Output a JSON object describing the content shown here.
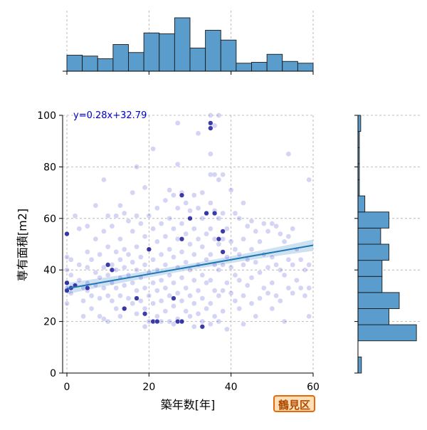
{
  "chart_data": [
    {
      "type": "scatter",
      "title": "",
      "xlabel": "築年数[年]",
      "ylabel": "専有面積[m2]",
      "xlim": [
        -1,
        60
      ],
      "ylim": [
        0,
        100
      ],
      "xticks": [
        "0",
        "20",
        "40",
        "60"
      ],
      "yticks": [
        "0",
        "20",
        "40",
        "60",
        "80",
        "100"
      ],
      "grid": true,
      "point_color": "#3a3ad0",
      "regression": {
        "label": "y=0.28x+32.79",
        "slope": 0.28,
        "intercept": 32.79,
        "color": "#1f77b4",
        "label_color": "#0000cc",
        "ci_halfwidth_ends": 2.2,
        "ci_halfwidth_mid": 1.2
      },
      "points": [
        [
          0,
          54
        ],
        [
          0,
          45
        ],
        [
          0,
          40
        ],
        [
          0,
          35
        ],
        [
          0,
          33
        ],
        [
          0,
          27
        ],
        [
          1,
          44
        ],
        [
          1,
          38
        ],
        [
          1,
          31
        ],
        [
          2,
          61
        ],
        [
          3,
          56
        ],
        [
          3,
          42
        ],
        [
          3,
          36
        ],
        [
          4,
          33
        ],
        [
          4,
          28
        ],
        [
          4,
          22
        ],
        [
          5,
          57
        ],
        [
          5,
          47
        ],
        [
          5,
          41
        ],
        [
          5,
          35
        ],
        [
          5,
          32
        ],
        [
          6,
          44
        ],
        [
          6,
          30
        ],
        [
          6,
          25
        ],
        [
          7,
          65
        ],
        [
          7,
          52
        ],
        [
          7,
          39
        ],
        [
          7,
          34
        ],
        [
          8,
          46
        ],
        [
          8,
          37
        ],
        [
          8,
          29
        ],
        [
          8,
          22
        ],
        [
          9,
          75
        ],
        [
          9,
          55
        ],
        [
          9,
          41
        ],
        [
          9,
          33
        ],
        [
          9,
          21
        ],
        [
          10,
          61
        ],
        [
          10,
          49
        ],
        [
          10,
          38
        ],
        [
          10,
          30
        ],
        [
          10,
          20
        ],
        [
          11,
          57
        ],
        [
          11,
          42
        ],
        [
          11,
          35
        ],
        [
          11,
          28
        ],
        [
          12,
          61
        ],
        [
          12,
          47
        ],
        [
          12,
          40
        ],
        [
          12,
          33
        ],
        [
          12,
          25
        ],
        [
          13,
          65
        ],
        [
          13,
          52
        ],
        [
          13,
          44
        ],
        [
          13,
          37
        ],
        [
          13,
          30
        ],
        [
          13,
          22
        ],
        [
          14,
          62
        ],
        [
          14,
          48
        ],
        [
          14,
          41
        ],
        [
          14,
          34
        ],
        [
          14,
          25
        ],
        [
          15,
          59
        ],
        [
          15,
          46
        ],
        [
          15,
          38
        ],
        [
          15,
          29
        ],
        [
          16,
          70
        ],
        [
          16,
          55
        ],
        [
          16,
          43
        ],
        [
          16,
          35
        ],
        [
          16,
          27
        ],
        [
          17,
          80
        ],
        [
          17,
          61
        ],
        [
          17,
          49
        ],
        [
          17,
          40
        ],
        [
          17,
          32
        ],
        [
          17,
          23
        ],
        [
          18,
          58
        ],
        [
          18,
          45
        ],
        [
          18,
          37
        ],
        [
          18,
          28
        ],
        [
          19,
          72
        ],
        [
          19,
          53
        ],
        [
          19,
          42
        ],
        [
          19,
          33
        ],
        [
          19,
          25
        ],
        [
          19,
          18
        ],
        [
          20,
          61
        ],
        [
          20,
          48
        ],
        [
          20,
          39
        ],
        [
          20,
          30
        ],
        [
          20,
          20
        ],
        [
          21,
          87
        ],
        [
          21,
          56
        ],
        [
          21,
          44
        ],
        [
          21,
          35
        ],
        [
          21,
          27
        ],
        [
          22,
          64
        ],
        [
          22,
          51
        ],
        [
          22,
          40
        ],
        [
          22,
          32
        ],
        [
          22,
          22
        ],
        [
          23,
          58
        ],
        [
          23,
          46
        ],
        [
          23,
          36
        ],
        [
          23,
          28
        ],
        [
          23,
          20
        ],
        [
          24,
          67
        ],
        [
          24,
          53
        ],
        [
          24,
          42
        ],
        [
          24,
          33
        ],
        [
          24,
          24
        ],
        [
          25,
          71
        ],
        [
          25,
          60
        ],
        [
          25,
          48
        ],
        [
          25,
          38
        ],
        [
          25,
          30
        ],
        [
          25,
          20
        ],
        [
          26,
          69
        ],
        [
          26,
          56
        ],
        [
          26,
          45
        ],
        [
          26,
          35
        ],
        [
          26,
          26
        ],
        [
          26,
          19
        ],
        [
          27,
          97
        ],
        [
          27,
          81
        ],
        [
          27,
          64
        ],
        [
          27,
          52
        ],
        [
          27,
          41
        ],
        [
          27,
          31
        ],
        [
          27,
          21
        ],
        [
          28,
          70
        ],
        [
          28,
          58
        ],
        [
          28,
          47
        ],
        [
          28,
          37
        ],
        [
          28,
          28
        ],
        [
          28,
          20
        ],
        [
          29,
          66
        ],
        [
          29,
          54
        ],
        [
          29,
          43
        ],
        [
          29,
          33
        ],
        [
          29,
          24
        ],
        [
          30,
          63
        ],
        [
          30,
          50
        ],
        [
          30,
          40
        ],
        [
          30,
          30
        ],
        [
          30,
          22
        ],
        [
          31,
          69
        ],
        [
          31,
          56
        ],
        [
          31,
          46
        ],
        [
          31,
          36
        ],
        [
          31,
          27
        ],
        [
          31,
          18
        ],
        [
          32,
          93
        ],
        [
          32,
          64
        ],
        [
          32,
          52
        ],
        [
          32,
          42
        ],
        [
          32,
          32
        ],
        [
          32,
          23
        ],
        [
          33,
          70
        ],
        [
          33,
          60
        ],
        [
          33,
          49
        ],
        [
          33,
          38
        ],
        [
          33,
          29
        ],
        [
          33,
          20
        ],
        [
          34,
          62
        ],
        [
          34,
          54
        ],
        [
          34,
          44
        ],
        [
          34,
          35
        ],
        [
          34,
          25
        ],
        [
          35,
          100
        ],
        [
          35,
          85
        ],
        [
          35,
          77
        ],
        [
          35,
          66
        ],
        [
          35,
          56
        ],
        [
          35,
          46
        ],
        [
          35,
          36
        ],
        [
          35,
          27
        ],
        [
          35,
          19
        ],
        [
          36,
          96
        ],
        [
          36,
          77
        ],
        [
          36,
          63
        ],
        [
          36,
          52
        ],
        [
          36,
          42
        ],
        [
          36,
          32
        ],
        [
          36,
          22
        ],
        [
          37,
          100
        ],
        [
          37,
          75
        ],
        [
          37,
          60
        ],
        [
          37,
          50
        ],
        [
          37,
          40
        ],
        [
          37,
          30
        ],
        [
          37,
          20
        ],
        [
          38,
          77
        ],
        [
          38,
          62
        ],
        [
          38,
          52
        ],
        [
          38,
          42
        ],
        [
          38,
          32
        ],
        [
          38,
          24
        ],
        [
          39,
          56
        ],
        [
          39,
          45
        ],
        [
          39,
          35
        ],
        [
          39,
          17
        ],
        [
          40,
          71
        ],
        [
          40,
          51
        ],
        [
          40,
          41
        ],
        [
          40,
          31
        ],
        [
          41,
          62
        ],
        [
          41,
          48
        ],
        [
          41,
          38
        ],
        [
          41,
          28
        ],
        [
          42,
          60
        ],
        [
          42,
          46
        ],
        [
          42,
          36
        ],
        [
          42,
          25
        ],
        [
          43,
          66
        ],
        [
          43,
          52
        ],
        [
          43,
          42
        ],
        [
          43,
          30
        ],
        [
          43,
          19
        ],
        [
          44,
          57
        ],
        [
          44,
          44
        ],
        [
          44,
          34
        ],
        [
          45,
          59
        ],
        [
          45,
          48
        ],
        [
          45,
          37
        ],
        [
          45,
          27
        ],
        [
          46,
          55
        ],
        [
          46,
          43
        ],
        [
          46,
          22
        ],
        [
          47,
          51
        ],
        [
          47,
          39
        ],
        [
          47,
          29
        ],
        [
          48,
          58
        ],
        [
          48,
          46
        ],
        [
          48,
          33
        ],
        [
          49,
          55
        ],
        [
          49,
          41
        ],
        [
          49,
          31
        ],
        [
          50,
          58
        ],
        [
          50,
          45
        ],
        [
          50,
          35
        ],
        [
          50,
          25
        ],
        [
          51,
          57
        ],
        [
          51,
          42
        ],
        [
          51,
          30
        ],
        [
          52,
          54
        ],
        [
          52,
          40
        ],
        [
          52,
          28
        ],
        [
          53,
          51
        ],
        [
          53,
          38
        ],
        [
          53,
          20
        ],
        [
          54,
          85
        ],
        [
          54,
          53
        ],
        [
          54,
          44
        ],
        [
          54,
          33
        ],
        [
          55,
          56
        ],
        [
          55,
          42
        ],
        [
          55,
          31
        ],
        [
          56,
          48
        ],
        [
          56,
          36
        ],
        [
          57,
          44
        ],
        [
          57,
          33
        ],
        [
          58,
          40
        ],
        [
          58,
          30
        ],
        [
          59,
          75
        ],
        [
          59,
          42
        ],
        [
          59,
          33
        ],
        [
          59,
          22
        ]
      ],
      "dark_points": [
        [
          0,
          54
        ],
        [
          0,
          35
        ],
        [
          0,
          32
        ],
        [
          1,
          33
        ],
        [
          2,
          34
        ],
        [
          5,
          33
        ],
        [
          10,
          42
        ],
        [
          11,
          40
        ],
        [
          14,
          25
        ],
        [
          17,
          29
        ],
        [
          19,
          23
        ],
        [
          20,
          48
        ],
        [
          21,
          20
        ],
        [
          22,
          20
        ],
        [
          26,
          29
        ],
        [
          27,
          20
        ],
        [
          28,
          69
        ],
        [
          28,
          52
        ],
        [
          28,
          20
        ],
        [
          30,
          60
        ],
        [
          33,
          18
        ],
        [
          34,
          62
        ],
        [
          35,
          97
        ],
        [
          35,
          95
        ],
        [
          36,
          62
        ],
        [
          37,
          52
        ],
        [
          38,
          55
        ],
        [
          38,
          47
        ]
      ]
    },
    {
      "type": "bar",
      "role": "top-marginal-histogram",
      "bin_edges": [
        0,
        3.75,
        7.5,
        11.25,
        15,
        18.75,
        22.5,
        26.25,
        30,
        33.75,
        37.5,
        41.25,
        45,
        48.75,
        52.5,
        56.25,
        60
      ],
      "values": [
        9,
        8.5,
        7,
        15,
        10.5,
        21.5,
        21,
        30,
        13,
        23,
        17.5,
        4.5,
        5,
        9.5,
        5.5,
        4.5
      ],
      "ylim": [
        0,
        30
      ],
      "color": "#5a9ccc"
    },
    {
      "type": "bar",
      "role": "right-marginal-histogram",
      "bin_edges": [
        0,
        6.25,
        12.5,
        18.75,
        25,
        31.25,
        37.5,
        43.75,
        50,
        56.25,
        62.5,
        68.75,
        75,
        81.25,
        87.5,
        93.75,
        100
      ],
      "values": [
        0.5,
        0,
        8.5,
        4.5,
        6,
        3.5,
        3.5,
        4.5,
        3.3,
        4.5,
        1,
        0.2,
        0.2,
        0.2,
        0.2,
        0.4
      ],
      "xlim": [
        0,
        9
      ],
      "color": "#5a9ccc"
    }
  ],
  "badge": {
    "text": "鶴見区"
  }
}
